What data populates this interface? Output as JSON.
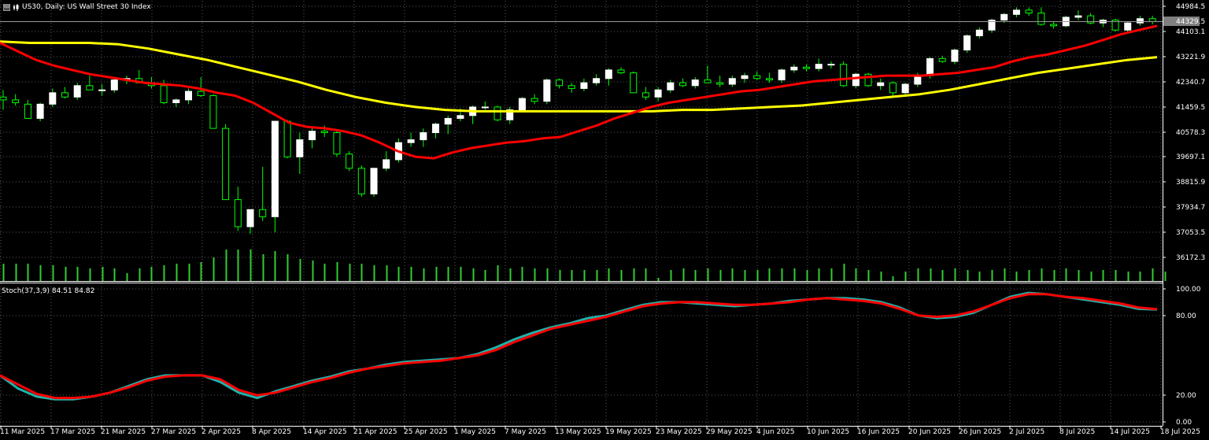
{
  "window": {
    "symbol_title": "US30, Daily:  US Wall Street 30 Index",
    "icons": [
      "menu-icon",
      "chart-type-icon"
    ]
  },
  "price_tag": "44329.5",
  "stoch_title": "Stoch(37,3,9) 84.51 84.82",
  "colors": {
    "background": "#000000",
    "grid": "#5a5a5a",
    "bull_candle": "#ffffff",
    "bear_candle": "#000000",
    "wick": "#00ff00",
    "volume": "#32cd32",
    "ma_fast": "#ff0000",
    "ma_slow": "#ffff00",
    "stoch_main": "#20b2aa",
    "stoch_signal": "#ff0000",
    "text": "#ffffff"
  },
  "chart_data": [
    {
      "type": "candlestick",
      "title": "US30, Daily:  US Wall Street 30 Index",
      "y_ticks": [
        "44984.5",
        "44103.1",
        "43221.9",
        "42340.7",
        "41459.5",
        "40578.3",
        "39697.1",
        "38815.9",
        "37934.7",
        "37053.5",
        "36172.3"
      ],
      "ylim": [
        35700,
        45100
      ],
      "x_ticks": [
        "11 Mar 2025",
        "17 Mar 2025",
        "21 Mar 2025",
        "27 Mar 2025",
        "2 Apr 2025",
        "8 Apr 2025",
        "14 Apr 2025",
        "21 Apr 2025",
        "25 Apr 2025",
        "1 May 2025",
        "7 May 2025",
        "13 May 2025",
        "19 May 2025",
        "23 May 2025",
        "29 May 2025",
        "4 Jun 2025",
        "10 Jun 2025",
        "16 Jun 2025",
        "20 Jun 2025",
        "26 Jun 2025",
        "2 Jul 2025",
        "8 Jul 2025",
        "14 Jul 2025",
        "18 Jul 2025"
      ],
      "candles": [
        [
          41800,
          42050,
          41350,
          41700
        ],
        [
          41700,
          41900,
          41500,
          41600
        ],
        [
          41550,
          41700,
          41050,
          41050
        ],
        [
          41050,
          41600,
          40950,
          41550
        ],
        [
          41550,
          42100,
          41450,
          41950
        ],
        [
          41950,
          42150,
          41750,
          41800
        ],
        [
          41800,
          42300,
          41700,
          42200
        ],
        [
          42200,
          42550,
          42050,
          42050
        ],
        [
          42050,
          42250,
          41850,
          42050
        ],
        [
          42050,
          42450,
          41950,
          42400
        ],
        [
          42400,
          42550,
          42250,
          42450
        ],
        [
          42450,
          42750,
          42300,
          42300
        ],
        [
          42300,
          42500,
          42100,
          42200
        ],
        [
          42200,
          42400,
          41550,
          41600
        ],
        [
          41600,
          41750,
          41450,
          41700
        ],
        [
          41700,
          42100,
          41550,
          42000
        ],
        [
          42000,
          42500,
          41800,
          41850
        ],
        [
          41850,
          41900,
          40700,
          40700
        ],
        [
          40700,
          40850,
          38200,
          38200
        ],
        [
          38200,
          38650,
          37100,
          37250
        ],
        [
          37250,
          37850,
          37000,
          37850
        ],
        [
          37850,
          39350,
          37450,
          37600
        ],
        [
          37600,
          40950,
          37050,
          40950
        ],
        [
          40950,
          41000,
          39650,
          39700
        ],
        [
          39700,
          40550,
          39100,
          40300
        ],
        [
          40300,
          40750,
          40000,
          40600
        ],
        [
          40600,
          40800,
          40400,
          40550
        ],
        [
          40550,
          40600,
          39700,
          39800
        ],
        [
          39800,
          39900,
          39200,
          39300
        ],
        [
          39300,
          39400,
          38300,
          38400
        ],
        [
          38400,
          39300,
          38300,
          39300
        ],
        [
          39300,
          39900,
          39200,
          39600
        ],
        [
          39600,
          40350,
          39500,
          40200
        ],
        [
          40200,
          40550,
          40050,
          40300
        ],
        [
          40300,
          40700,
          40050,
          40550
        ],
        [
          40550,
          40900,
          40350,
          40850
        ],
        [
          40850,
          41150,
          40500,
          41050
        ],
        [
          41050,
          41400,
          40950,
          41150
        ],
        [
          41150,
          41500,
          40850,
          41450
        ],
        [
          41450,
          41650,
          41350,
          41450
        ],
        [
          41450,
          41500,
          40950,
          41000
        ],
        [
          41000,
          41450,
          40850,
          41350
        ],
        [
          41350,
          41800,
          41250,
          41750
        ],
        [
          41750,
          41900,
          41550,
          41650
        ],
        [
          41650,
          42450,
          41550,
          42400
        ],
        [
          42400,
          42450,
          42100,
          42200
        ],
        [
          42200,
          42300,
          41950,
          42100
        ],
        [
          42100,
          42450,
          42000,
          42300
        ],
        [
          42300,
          42600,
          42200,
          42450
        ],
        [
          42450,
          42800,
          42200,
          42750
        ],
        [
          42750,
          42850,
          42600,
          42650
        ],
        [
          42650,
          42700,
          41950,
          41950
        ],
        [
          41950,
          42150,
          41700,
          41800
        ],
        [
          41800,
          42150,
          41650,
          42050
        ],
        [
          42050,
          42400,
          41950,
          42300
        ],
        [
          42300,
          42450,
          42150,
          42200
        ],
        [
          42200,
          42500,
          42100,
          42400
        ],
        [
          42400,
          42900,
          42300,
          42300
        ],
        [
          42300,
          42550,
          42150,
          42250
        ],
        [
          42250,
          42550,
          42150,
          42450
        ],
        [
          42450,
          42650,
          42300,
          42550
        ],
        [
          42550,
          42700,
          42400,
          42450
        ],
        [
          42450,
          42650,
          42300,
          42400
        ],
        [
          42400,
          42800,
          42300,
          42750
        ],
        [
          42750,
          42950,
          42650,
          42850
        ],
        [
          42850,
          42950,
          42700,
          42800
        ],
        [
          42800,
          43150,
          42700,
          42950
        ],
        [
          42950,
          43050,
          42800,
          42950
        ],
        [
          42950,
          43050,
          42150,
          42200
        ],
        [
          42200,
          42650,
          42100,
          42600
        ],
        [
          42600,
          42650,
          42150,
          42200
        ],
        [
          42200,
          42450,
          42050,
          42300
        ],
        [
          42300,
          42350,
          41850,
          41950
        ],
        [
          41950,
          42300,
          41850,
          42250
        ],
        [
          42250,
          42650,
          42150,
          42550
        ],
        [
          42550,
          43200,
          42450,
          43150
        ],
        [
          43150,
          43250,
          43000,
          43050
        ],
        [
          43050,
          43500,
          42950,
          43450
        ],
        [
          43450,
          44000,
          43350,
          43950
        ],
        [
          43950,
          44250,
          43850,
          44150
        ],
        [
          44150,
          44550,
          44050,
          44500
        ],
        [
          44500,
          44750,
          44400,
          44700
        ],
        [
          44700,
          44950,
          44600,
          44850
        ],
        [
          44850,
          44950,
          44650,
          44750
        ],
        [
          44750,
          44950,
          44300,
          44350
        ],
        [
          44350,
          44450,
          44200,
          44300
        ],
        [
          44300,
          44650,
          44250,
          44600
        ],
        [
          44600,
          44850,
          44500,
          44650
        ],
        [
          44650,
          44750,
          44350,
          44400
        ],
        [
          44400,
          44550,
          44250,
          44500
        ],
        [
          44500,
          44550,
          44100,
          44150
        ],
        [
          44150,
          44450,
          44050,
          44400
        ],
        [
          44400,
          44650,
          44300,
          44550
        ],
        [
          44550,
          44650,
          44350,
          44450
        ]
      ],
      "volume": [
        0.55,
        0.55,
        0.55,
        0.5,
        0.5,
        0.45,
        0.45,
        0.4,
        0.45,
        0.4,
        0.25,
        0.4,
        0.45,
        0.5,
        0.55,
        0.55,
        0.6,
        0.75,
        1.0,
        1.0,
        1.0,
        0.85,
        0.95,
        0.85,
        0.7,
        0.65,
        0.55,
        0.6,
        0.55,
        0.55,
        0.5,
        0.5,
        0.45,
        0.45,
        0.4,
        0.45,
        0.45,
        0.45,
        0.4,
        0.35,
        0.5,
        0.4,
        0.45,
        0.4,
        0.4,
        0.35,
        0.35,
        0.35,
        0.35,
        0.4,
        0.35,
        0.4,
        0.4,
        0.1,
        0.35,
        0.4,
        0.35,
        0.4,
        0.35,
        0.4,
        0.35,
        0.35,
        0.4,
        0.4,
        0.4,
        0.35,
        0.4,
        0.4,
        0.55,
        0.4,
        0.35,
        0.3,
        0.15,
        0.3,
        0.4,
        0.4,
        0.35,
        0.4,
        0.35,
        0.3,
        0.35,
        0.4,
        0.3,
        0.35,
        0.4,
        0.35,
        0.4,
        0.35,
        0.3,
        0.35,
        0.35,
        0.3,
        0.3,
        0.4,
        0.3
      ],
      "series": [
        {
          "values": [
            43700,
            43400,
            43100,
            42900,
            42750,
            42600,
            42500,
            42400,
            42300,
            42250,
            42200,
            42100,
            41950,
            41850,
            41600,
            41250,
            40900,
            40750,
            40700,
            40600,
            40450,
            40200,
            39900,
            39700,
            39650,
            39850,
            40000,
            40100,
            40200,
            40250,
            40350,
            40400,
            40600,
            40800,
            41050,
            41250,
            41450,
            41600,
            41700,
            41800,
            41900,
            42000,
            42050,
            42150,
            42250,
            42350,
            42400,
            42450,
            42500,
            42550,
            42550,
            42550,
            42600,
            42650,
            42750,
            42850,
            43050,
            43200,
            43300,
            43450,
            43600,
            43800,
            44000,
            44150,
            44300
          ]
        },
        {
          "values": [
            43750,
            43700,
            43700,
            43700,
            43650,
            43500,
            43300,
            43100,
            42850,
            42600,
            42350,
            42050,
            41800,
            41600,
            41450,
            41350,
            41300,
            41300,
            41300,
            41300,
            41300,
            41300,
            41300,
            41350,
            41350,
            41400,
            41450,
            41500,
            41600,
            41700,
            41800,
            41900,
            42050,
            42250,
            42450,
            42650,
            42800,
            42950,
            43100,
            43200
          ]
        }
      ]
    },
    {
      "type": "line",
      "title": "Stoch(37,3,9) 84.51 84.82",
      "ylim": [
        0,
        100
      ],
      "y_ticks": [
        "100.00",
        "80.00",
        "20.00",
        "0.00"
      ],
      "series": [
        {
          "values": [
            35,
            25,
            19,
            17,
            17,
            19,
            22,
            27,
            32,
            35,
            35,
            35,
            30,
            22,
            18,
            23,
            27,
            31,
            34,
            38,
            40,
            43,
            45,
            46,
            47,
            48,
            51,
            56,
            62,
            67,
            71,
            74,
            78,
            80,
            84,
            88,
            90,
            90,
            89,
            88,
            87,
            88,
            89,
            91,
            92,
            93,
            93,
            92,
            90,
            86,
            80,
            78,
            79,
            82,
            88,
            94,
            97,
            96,
            94,
            92,
            90,
            88,
            85,
            84.51
          ]
        },
        {
          "values": [
            35,
            28,
            21,
            18,
            18,
            19,
            22,
            26,
            31,
            34,
            35,
            35,
            32,
            24,
            20,
            22,
            26,
            30,
            33,
            37,
            40,
            42,
            44,
            45,
            46,
            48,
            50,
            54,
            60,
            65,
            70,
            73,
            76,
            79,
            83,
            87,
            89,
            90,
            90,
            89,
            88,
            88,
            89,
            90,
            92,
            93,
            92,
            91,
            89,
            85,
            80,
            79,
            80,
            83,
            88,
            93,
            96,
            96,
            94,
            93,
            91,
            89,
            86,
            84.82
          ]
        }
      ]
    }
  ]
}
